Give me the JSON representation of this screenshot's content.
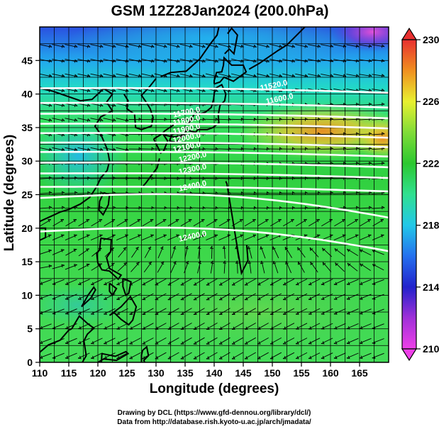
{
  "figure": {
    "title": "GSM 12Z28Jan2024 (200.0hPa)",
    "xlabel": "Longitude (degrees)",
    "ylabel": "Latitude  (degrees)",
    "credit_line1": "Drawing by DCL (https://www.gfd-dennou.org/library/dcl/)",
    "credit_line2": "Data from http://database.rish.kyoto-u.ac.jp/arch/jmadata/"
  },
  "chart_data": {
    "type": "heatmap",
    "x_range": [
      110,
      170
    ],
    "y_range": [
      0,
      50
    ],
    "x_ticks": [
      110,
      115,
      120,
      125,
      130,
      135,
      140,
      145,
      150,
      155,
      160,
      165
    ],
    "y_ticks": [
      0,
      5,
      10,
      15,
      20,
      25,
      30,
      35,
      40,
      45
    ],
    "colorbar": {
      "min": 210,
      "max": 230,
      "ticks": [
        210,
        214,
        218,
        222,
        226,
        230
      ],
      "colors": [
        "#e63ce6",
        "#7a2bd8",
        "#2020d0",
        "#2a7ff0",
        "#22d0e0",
        "#30e070",
        "#2cc830",
        "#8ce040",
        "#f0f030",
        "#f08020",
        "#e83030"
      ]
    },
    "contour_labels": [
      {
        "text": "11520.0",
        "lon": 148,
        "lat": 40.5
      },
      {
        "text": "11600.0",
        "lon": 149,
        "lat": 38.5
      },
      {
        "text": "11700.0",
        "lon": 133,
        "lat": 36.5
      },
      {
        "text": "11800.0",
        "lon": 133,
        "lat": 35.3
      },
      {
        "text": "11900.0",
        "lon": 133,
        "lat": 34.0
      },
      {
        "text": "12000.0",
        "lon": 133,
        "lat": 32.7
      },
      {
        "text": "12100.0",
        "lon": 133,
        "lat": 31.3
      },
      {
        "text": "12200.0",
        "lon": 134,
        "lat": 29.8
      },
      {
        "text": "12300.0",
        "lon": 134,
        "lat": 28.0
      },
      {
        "text": "12400.0",
        "lon": 134,
        "lat": 25.5
      },
      {
        "text": "12400.0",
        "lon": 134,
        "lat": 18.0
      }
    ],
    "height_contours_lat": [
      40.5,
      38.3,
      36.7,
      35.2,
      33.8,
      32.4,
      31.0,
      29.4,
      27.8,
      25.8,
      22.5,
      17.5
    ]
  }
}
